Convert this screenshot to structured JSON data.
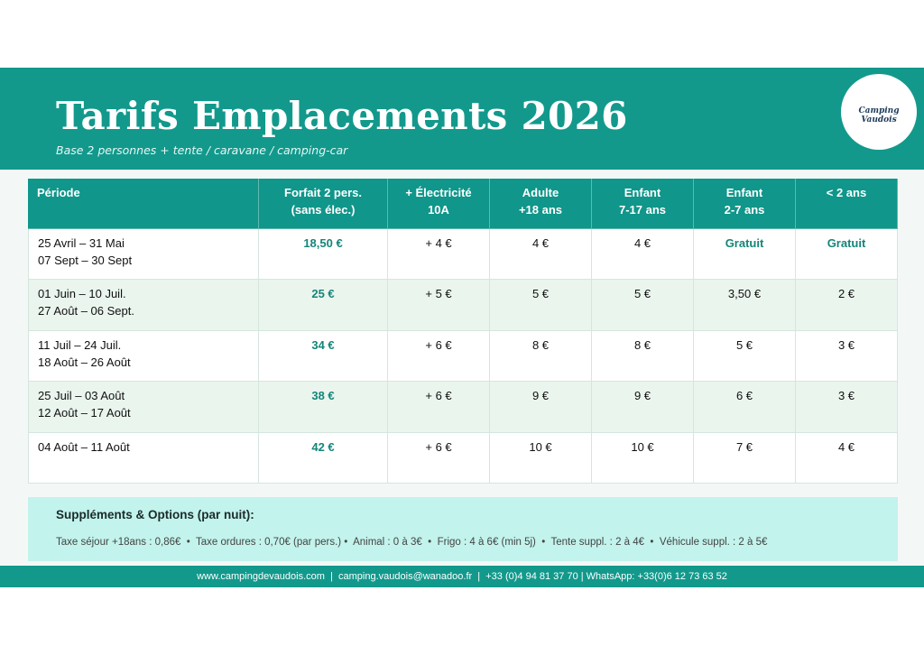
{
  "header": {
    "title": "Tarifs Emplacements 2026",
    "subtitle": "Base 2 personnes + tente / caravane / camping-car",
    "logo": [
      "Camping",
      "Vaudois"
    ]
  },
  "table": {
    "columns": [
      [
        "Période"
      ],
      [
        "Forfait 2 pers.",
        "(sans élec.)"
      ],
      [
        "+ Électricité",
        "10A"
      ],
      [
        "Adulte",
        "+18 ans"
      ],
      [
        "Enfant",
        "7-17 ans"
      ],
      [
        "Enfant",
        "2-7 ans"
      ],
      [
        "< 2 ans"
      ]
    ],
    "rows": [
      [
        [
          "25 Avril – 31 Mai",
          "07 Sept – 30 Sept"
        ],
        "18,50 €",
        "+ 4 €",
        "4 €",
        "4 €",
        "Gratuit",
        "Gratuit"
      ],
      [
        [
          "01 Juin – 10 Juil.",
          "27 Août – 06 Sept."
        ],
        "25 €",
        "+ 5 €",
        "5 €",
        "5 €",
        "3,50 €",
        "2 €"
      ],
      [
        [
          "11 Juil – 24 Juil.",
          "18 Août – 26 Août"
        ],
        "34 €",
        "+ 6 €",
        "8 €",
        "8 €",
        "5 €",
        "3 €"
      ],
      [
        [
          "25 Juil – 03 Août",
          "12 Août – 17 Août"
        ],
        "38 €",
        "+ 6 €",
        "9 €",
        "9 €",
        "6 €",
        "3 €"
      ],
      [
        [
          "04 Août – 11 Août"
        ],
        "42 €",
        "+ 6 €",
        "10 €",
        "10 €",
        "7 €",
        "4 €"
      ]
    ]
  },
  "supplements": {
    "title": "Suppléments & Options (par nuit):",
    "text": "Taxe séjour +18ans : 0,86€  •  Taxe ordures : 0,70€ (par pers.) •  Animal : 0 à 3€  •  Frigo : 4 à 6€ (min 5j)  •  Tente suppl. : 2 à 4€  •  Véhicule suppl. : 2 à 5€"
  },
  "footer": "www.campingdevaudois.com  |  camping.vaudois@wanadoo.fr  |  +33 (0)4 94 81 37 70 | WhatsApp: +33(0)6 12 73 63 52"
}
